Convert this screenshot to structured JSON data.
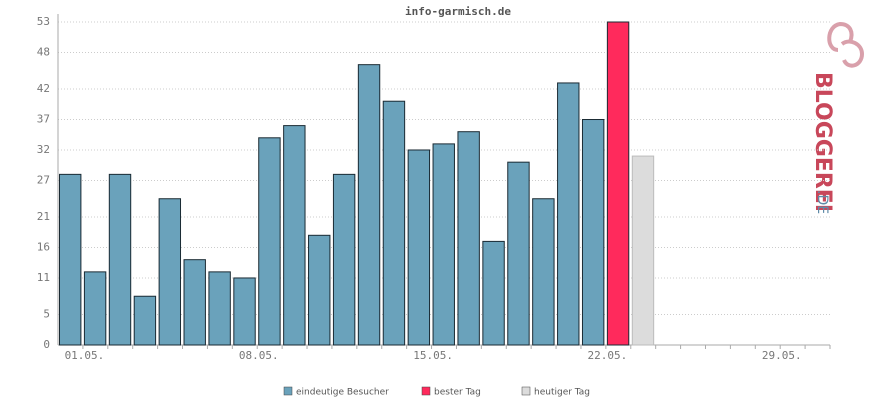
{
  "chart_data": {
    "type": "bar",
    "title": "info-garmisch.de",
    "categories": [
      "01.05.",
      null,
      null,
      null,
      null,
      null,
      null,
      "08.05.",
      null,
      null,
      null,
      null,
      null,
      null,
      "15.05.",
      null,
      null,
      null,
      null,
      null,
      null,
      "22.05.",
      null,
      null,
      null,
      null,
      null,
      null,
      "29.05.",
      null,
      null
    ],
    "series": [
      {
        "name": "eindeutige Besucher",
        "color": "#6aa2bb",
        "values": [
          28,
          12,
          28,
          8,
          24,
          14,
          12,
          11,
          34,
          36,
          18,
          28,
          46,
          40,
          32,
          33,
          35,
          17,
          30,
          24,
          43,
          37,
          null,
          null,
          null,
          null,
          null,
          null,
          null,
          null,
          null
        ]
      },
      {
        "name": "bester Tag",
        "color": "#ff2a5c",
        "values": [
          null,
          null,
          null,
          null,
          null,
          null,
          null,
          null,
          null,
          null,
          null,
          null,
          null,
          null,
          null,
          null,
          null,
          null,
          null,
          null,
          null,
          null,
          53,
          null,
          null,
          null,
          null,
          null,
          null,
          null,
          null
        ]
      },
      {
        "name": "heutiger Tag",
        "color": "#dcdcdc",
        "values": [
          null,
          null,
          null,
          null,
          null,
          null,
          null,
          null,
          null,
          null,
          null,
          null,
          null,
          null,
          null,
          null,
          null,
          null,
          null,
          null,
          null,
          null,
          null,
          31,
          null,
          null,
          null,
          null,
          null,
          null,
          null
        ]
      }
    ],
    "ylim": [
      0,
      53
    ],
    "yticks": [
      0,
      5,
      11,
      16,
      21,
      27,
      32,
      37,
      42,
      48,
      53
    ],
    "grid": true,
    "logo": {
      "main": "BLOGGEREI",
      "suffix": ".DE"
    }
  }
}
